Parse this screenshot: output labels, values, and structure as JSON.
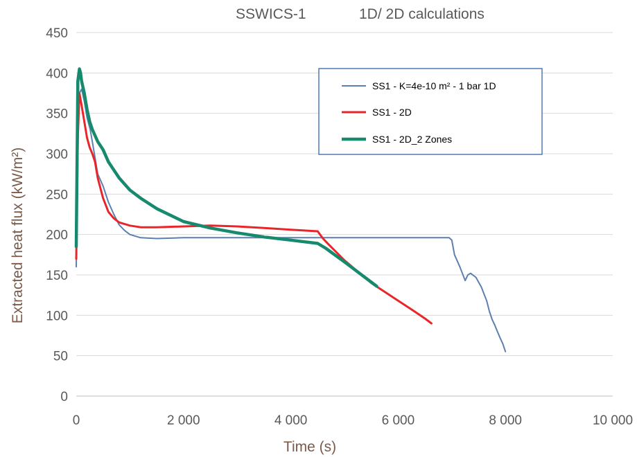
{
  "chart_data": {
    "type": "line",
    "title": "SSWICS-1",
    "subtitle": "1D/ 2D calculations",
    "xlabel": "Time (s)",
    "ylabel": "Extracted heat flux (kW/m²)",
    "xlim": [
      0,
      10000
    ],
    "ylim": [
      0,
      450
    ],
    "x_ticks": [
      0,
      2000,
      4000,
      6000,
      8000,
      10000
    ],
    "x_tick_labels": [
      "0",
      "2 000",
      "4 000",
      "6 000",
      "8 000",
      "10 000"
    ],
    "y_ticks": [
      0,
      50,
      100,
      150,
      200,
      250,
      300,
      350,
      400,
      450
    ],
    "y_tick_labels": [
      "0",
      "50",
      "100",
      "150",
      "200",
      "250",
      "300",
      "350",
      "400",
      "450"
    ],
    "grid": "horizontal",
    "legend_position": "top-right",
    "series": [
      {
        "name": "SS1 - K=4e-10 m² - 1 bar 1D",
        "color": "#5b7faf",
        "line_width": "thin",
        "x": [
          0,
          30,
          60,
          100,
          150,
          200,
          260,
          300,
          350,
          400,
          500,
          600,
          700,
          800,
          900,
          1000,
          1200,
          1500,
          2000,
          3000,
          4000,
          5000,
          6000,
          6950,
          7000,
          7050,
          7150,
          7250,
          7300,
          7350,
          7450,
          7550,
          7650,
          7700,
          7750,
          7800,
          7850,
          7900,
          7950,
          8000
        ],
        "y": [
          160,
          330,
          375,
          380,
          365,
          345,
          330,
          315,
          295,
          275,
          260,
          240,
          225,
          212,
          205,
          200,
          196,
          195,
          196,
          196,
          196,
          196,
          196,
          196,
          193,
          175,
          160,
          143,
          150,
          152,
          147,
          135,
          118,
          105,
          95,
          88,
          80,
          72,
          65,
          55
        ]
      },
      {
        "name": "SS1 - 2D",
        "color": "#e8262a",
        "line_width": "medium",
        "x": [
          0,
          30,
          60,
          100,
          150,
          200,
          250,
          300,
          350,
          400,
          500,
          600,
          700,
          800,
          1000,
          1200,
          1500,
          2000,
          2500,
          3000,
          3500,
          4000,
          4500,
          4600,
          4700,
          5000,
          5500,
          6000,
          6300,
          6500,
          6620
        ],
        "y": [
          170,
          320,
          375,
          360,
          340,
          320,
          308,
          300,
          290,
          270,
          245,
          228,
          220,
          215,
          211,
          209,
          209,
          210,
          211,
          210,
          208,
          206,
          204,
          195,
          188,
          168,
          140,
          118,
          105,
          96,
          90
        ]
      },
      {
        "name": "SS1 - 2D_2 Zones",
        "color": "#178a6e",
        "line_width": "thick",
        "x": [
          0,
          30,
          60,
          80,
          100,
          150,
          200,
          250,
          300,
          400,
          500,
          600,
          800,
          1000,
          1200,
          1500,
          2000,
          2500,
          3000,
          3500,
          4000,
          4500,
          4650,
          5000,
          5300,
          5600
        ],
        "y": [
          185,
          390,
          405,
          400,
          390,
          375,
          355,
          340,
          330,
          315,
          305,
          290,
          270,
          255,
          245,
          232,
          216,
          208,
          202,
          197,
          193,
          189,
          183,
          166,
          151,
          136
        ]
      }
    ]
  }
}
